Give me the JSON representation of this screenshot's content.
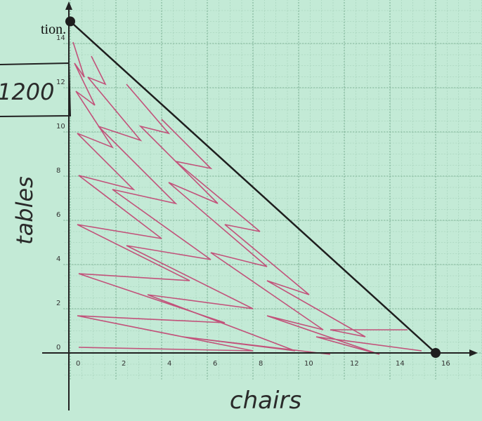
{
  "chart_data": {
    "type": "line",
    "title": "tion.",
    "annotation": "1200",
    "x_label": "chairs",
    "y_label": "tables",
    "x": [
      0,
      16
    ],
    "series": [
      {
        "color": "#1e1e1e",
        "values": [
          15,
          0
        ]
      }
    ],
    "xlim": [
      -0.3,
      18
    ],
    "ylim": [
      -1.2,
      16
    ],
    "xticks": [
      0,
      2,
      4,
      6,
      8,
      10,
      12,
      14,
      16
    ],
    "yticks": [
      0,
      2,
      4,
      6,
      8,
      10,
      12,
      14
    ],
    "grid": true
  }
}
